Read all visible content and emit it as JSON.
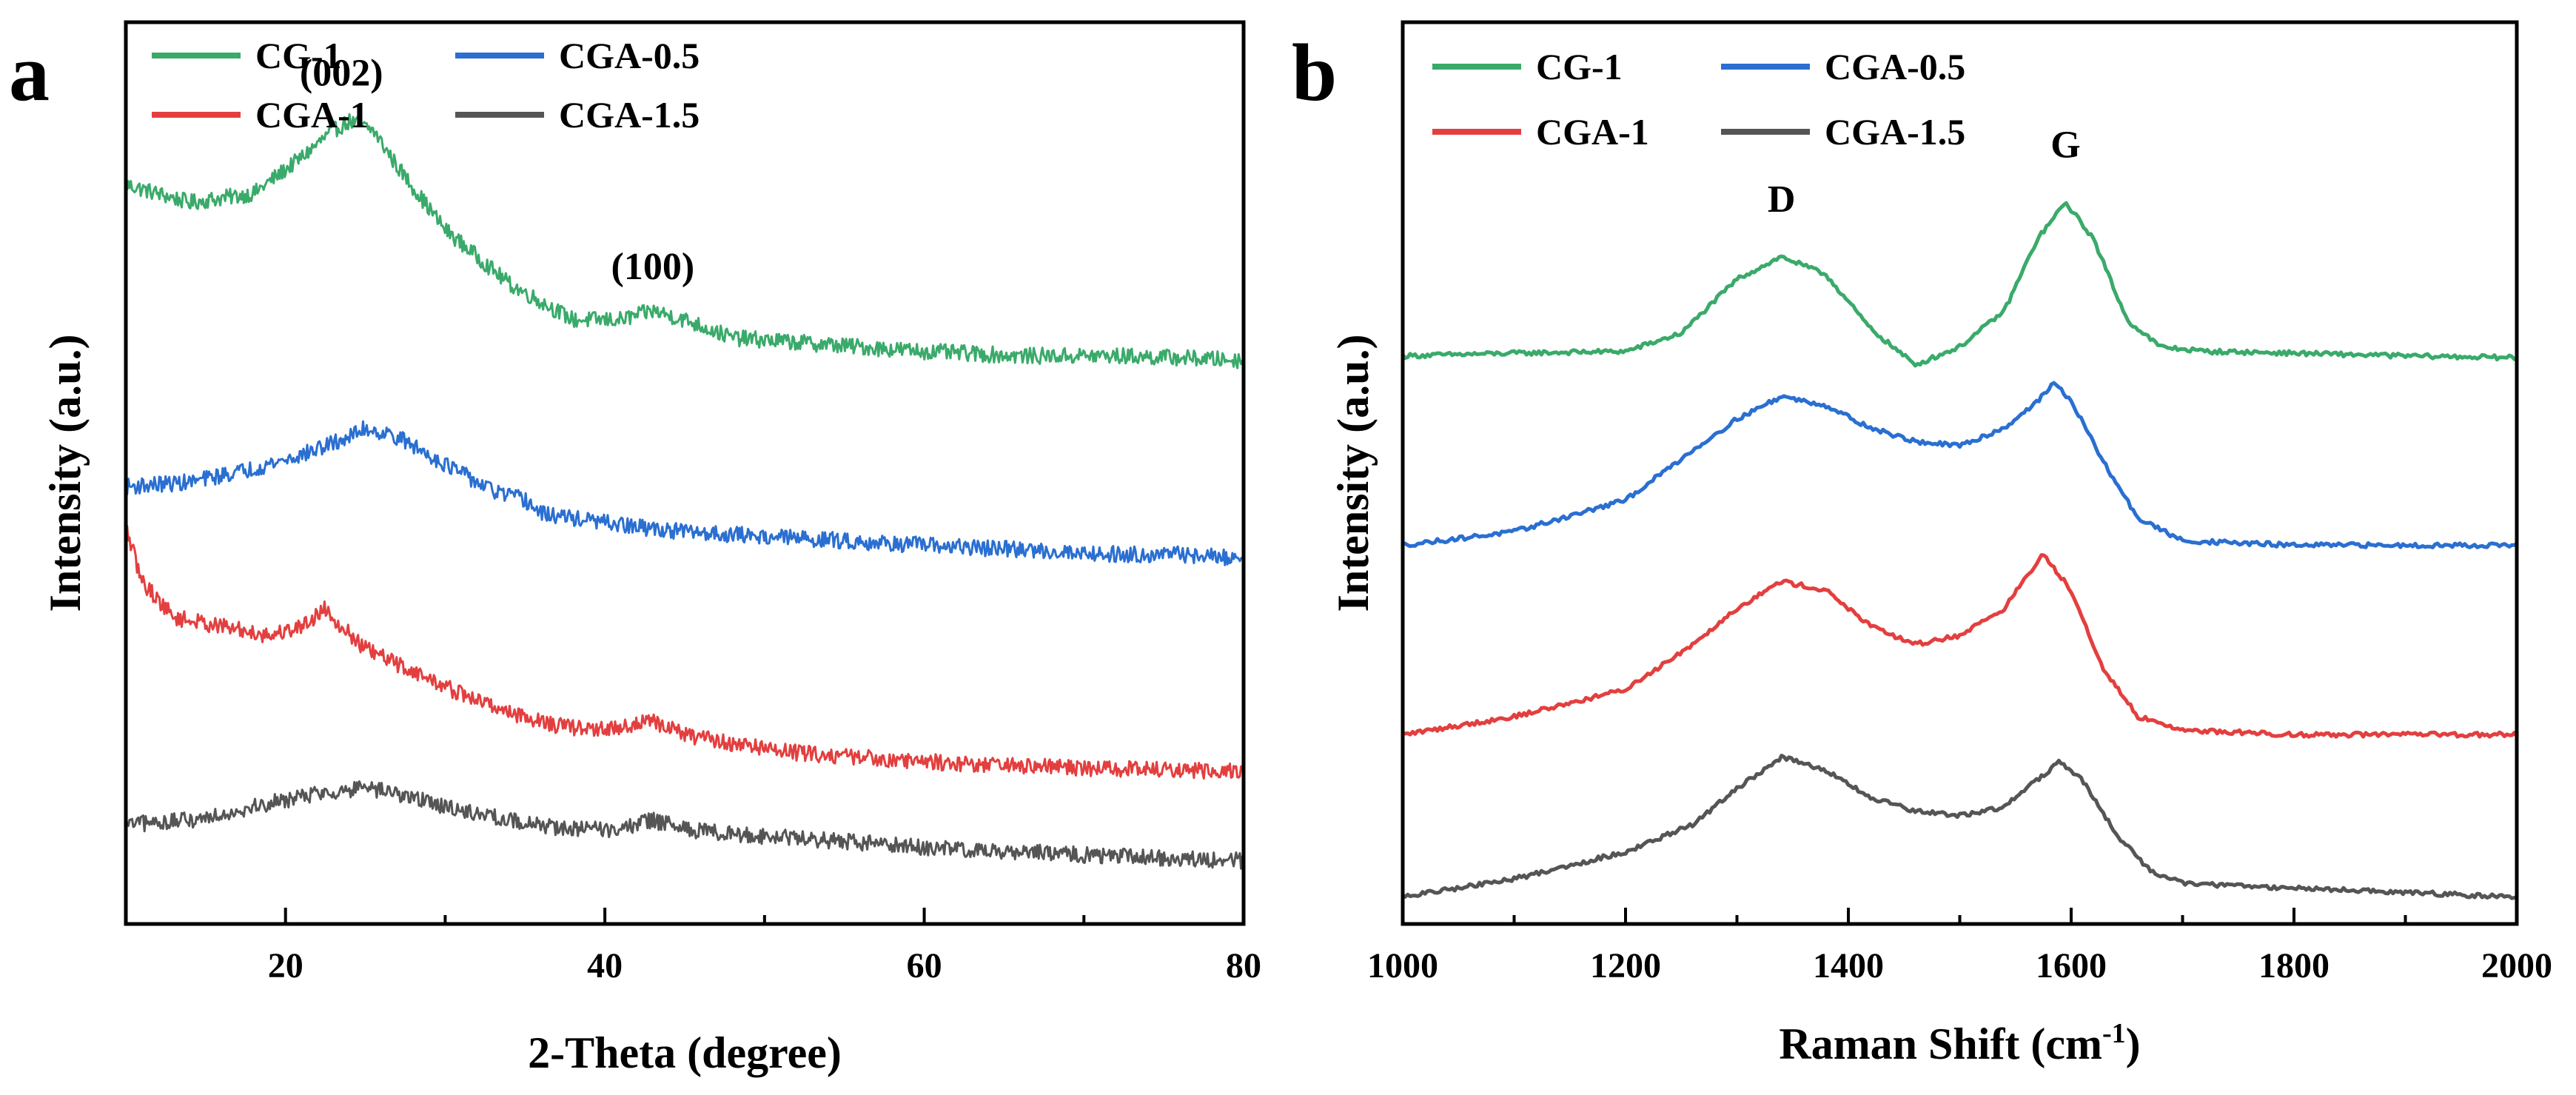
{
  "chart_data": [
    {
      "panel": "a",
      "type": "line",
      "title": "",
      "xlabel": "2-Theta (degree)",
      "ylabel": "Intensity (a.u.)",
      "xlim": [
        10,
        80
      ],
      "ylim": [
        0,
        100
      ],
      "xticks": [
        20,
        40,
        60,
        80
      ],
      "xtick_labels": [
        "20",
        "40",
        "60",
        "80"
      ],
      "grid": false,
      "legend": "top-left",
      "noise": true,
      "series": [
        {
          "name": "CG-1",
          "color": "#3aaa6a",
          "x": [
            10,
            14,
            18,
            21,
            23,
            24,
            25.5,
            27,
            30,
            34,
            38,
            41,
            43,
            45,
            48,
            52,
            56,
            60,
            66,
            72,
            76,
            80
          ],
          "y": [
            82,
            80,
            81,
            85,
            88,
            89,
            88,
            84,
            77,
            71,
            67,
            67,
            68,
            67,
            65,
            64.5,
            64,
            63.5,
            63,
            63,
            62.8,
            62.5
          ]
        },
        {
          "name": "CGA-0.5",
          "color": "#2a6fd1",
          "x": [
            10,
            14,
            18,
            21,
            24,
            25,
            27,
            30,
            33,
            35,
            36,
            38,
            42,
            45,
            50,
            55,
            60,
            66,
            72,
            76,
            80
          ],
          "y": [
            48.5,
            49,
            50.5,
            52,
            54,
            55,
            54,
            51,
            48,
            47,
            45.5,
            45,
            44,
            43.5,
            43,
            42.5,
            42,
            41.5,
            41,
            41,
            40.5
          ]
        },
        {
          "name": "CGA-1",
          "color": "#e33f3f",
          "x": [
            10,
            11,
            13,
            16,
            19,
            21,
            22.5,
            23.5,
            25,
            28,
            31,
            34,
            37,
            40,
            43,
            45,
            48,
            52,
            56,
            60,
            66,
            72,
            76,
            80
          ],
          "y": [
            44,
            38,
            34,
            33,
            32,
            33,
            35,
            33,
            30.5,
            28,
            25.5,
            23.5,
            22,
            21.5,
            22.5,
            21,
            20,
            19,
            18.5,
            18,
            17.5,
            17.2,
            17,
            17
          ]
        },
        {
          "name": "CGA-1.5",
          "color": "#555555",
          "x": [
            10,
            14,
            18,
            22,
            25,
            27,
            30,
            34,
            38,
            41,
            43,
            45,
            48,
            52,
            56,
            60,
            66,
            72,
            76,
            80
          ],
          "y": [
            11,
            11.5,
            13,
            14.5,
            15,
            14.5,
            13,
            11.5,
            10.5,
            10.5,
            11.5,
            10.5,
            10,
            9.5,
            9,
            8.5,
            8,
            7.5,
            7.3,
            7
          ]
        }
      ],
      "annotations": [
        {
          "text": "(002)",
          "x": 23.5,
          "y": 93
        },
        {
          "text": "(100)",
          "x": 43,
          "y": 71.5
        }
      ]
    },
    {
      "panel": "b",
      "type": "line",
      "title": "",
      "xlabel": "Raman Shift (cm",
      "xlabel_sup": "-1",
      "xlabel_end": ")",
      "ylabel": "Intensity (a.u.)",
      "xlim": [
        1000,
        2000
      ],
      "ylim": [
        0,
        100
      ],
      "xticks": [
        1000,
        1200,
        1400,
        1600,
        1800,
        2000
      ],
      "xtick_labels": [
        "1000",
        "1200",
        "1400",
        "1600",
        "1800",
        "2000"
      ],
      "grid": false,
      "legend": "top-left",
      "noise": true,
      "series": [
        {
          "name": "CG-1",
          "color": "#3aaa6a",
          "x": [
            1000,
            1100,
            1200,
            1250,
            1300,
            1340,
            1380,
            1420,
            1460,
            1500,
            1540,
            1570,
            1595,
            1620,
            1650,
            1680,
            1720,
            1800,
            1900,
            2000
          ],
          "y": [
            63,
            63.3,
            63.5,
            65.5,
            71.5,
            74,
            72,
            66,
            62,
            64,
            68,
            76,
            80,
            76,
            67,
            64,
            63.5,
            63.3,
            63,
            62.8
          ]
        },
        {
          "name": "CGA-0.5",
          "color": "#2a6fd1",
          "x": [
            1000,
            1100,
            1200,
            1260,
            1300,
            1340,
            1380,
            1420,
            1460,
            1500,
            1540,
            1570,
            1585,
            1600,
            1630,
            1660,
            1700,
            1800,
            1900,
            2000
          ],
          "y": [
            42,
            43.5,
            47,
            52.5,
            56,
            58.5,
            57.5,
            55,
            53.5,
            53,
            55,
            58,
            60,
            58,
            51,
            45,
            42.5,
            42,
            42,
            42
          ]
        },
        {
          "name": "CGA-1",
          "color": "#e33f3f",
          "x": [
            1000,
            1100,
            1200,
            1260,
            1300,
            1340,
            1380,
            1420,
            1460,
            1500,
            1540,
            1560,
            1575,
            1600,
            1630,
            1660,
            1700,
            1800,
            1900,
            2000
          ],
          "y": [
            21,
            23,
            26,
            31,
            35,
            38,
            37,
            33,
            31,
            32,
            35,
            38.5,
            41,
            37,
            28,
            23,
            21.5,
            21,
            21,
            21
          ]
        },
        {
          "name": "CGA-1.5",
          "color": "#555555",
          "x": [
            1000,
            1100,
            1200,
            1260,
            1300,
            1340,
            1380,
            1420,
            1460,
            1500,
            1540,
            1570,
            1590,
            1610,
            1640,
            1670,
            1700,
            1800,
            1900,
            2000
          ],
          "y": [
            3,
            5,
            8,
            11,
            15,
            18.5,
            17,
            14,
            12.5,
            12,
            13,
            16,
            18,
            16,
            10,
            6,
            4.5,
            4,
            3.5,
            3
          ]
        }
      ],
      "annotations": [
        {
          "text": "D",
          "x": 1340,
          "y": 79
        },
        {
          "text": "G",
          "x": 1595,
          "y": 85
        }
      ]
    }
  ]
}
